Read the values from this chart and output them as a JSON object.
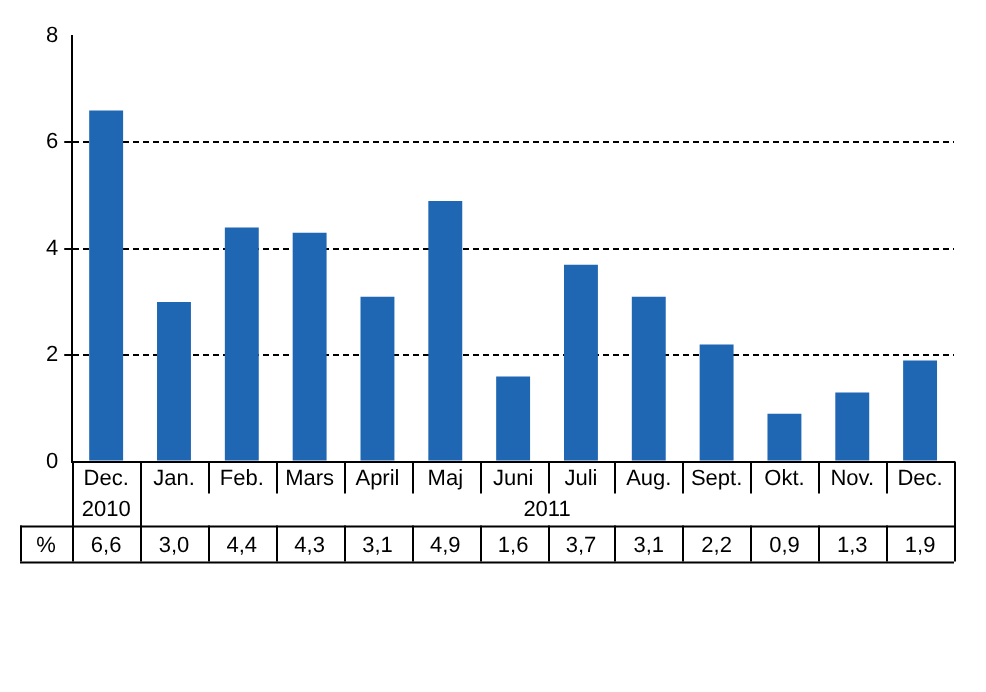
{
  "chart_data": {
    "type": "bar",
    "categories": [
      "Dec.",
      "Jan.",
      "Feb.",
      "Mars",
      "April",
      "Maj",
      "Juni",
      "Juli",
      "Aug.",
      "Sept.",
      "Okt.",
      "Nov.",
      "Dec."
    ],
    "values": [
      6.6,
      3.0,
      4.4,
      4.3,
      3.1,
      4.9,
      1.6,
      3.7,
      3.1,
      2.2,
      0.9,
      1.3,
      1.9
    ],
    "value_labels": [
      "6,6",
      "3,0",
      "4,4",
      "4,3",
      "3,1",
      "4,9",
      "1,6",
      "3,7",
      "3,1",
      "2,2",
      "0,9",
      "1,3",
      "1,9"
    ],
    "color": "#1f66b3",
    "ylim": [
      0,
      8
    ],
    "yticks": [
      0,
      2,
      4,
      6,
      8
    ],
    "grid": "y",
    "legend": false,
    "annotations": [
      "2010",
      "2011",
      "%"
    ]
  }
}
